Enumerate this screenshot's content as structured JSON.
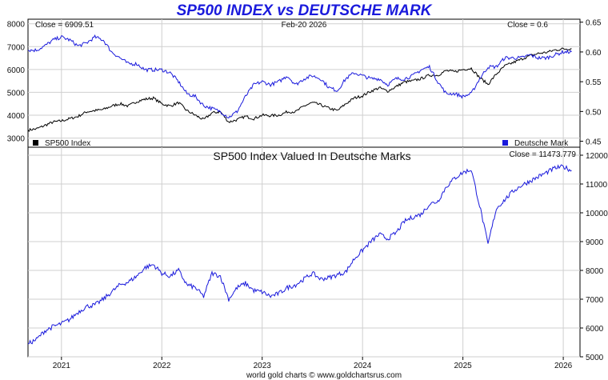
{
  "title": "SP500 INDEX vs DEUTSCHE MARK",
  "footer": "world gold charts © www.goldchartsrus.com",
  "colors": {
    "sp500": "#000000",
    "dem": "#1a1adc",
    "ratio": "#1a1adc",
    "title": "#1a1adc"
  },
  "chart_data": [
    {
      "type": "line",
      "title": "",
      "date_label": "Feb-20  2026",
      "close_left": "Close = 6909.51",
      "close_right": "Close = 0.6",
      "x_ticks": [
        "2021",
        "2022",
        "2023",
        "2024",
        "2025",
        "2026"
      ],
      "x_range": [
        "2020-09",
        "2026-03"
      ],
      "y_left_ticks": [
        "3000",
        "4000",
        "5000",
        "6000",
        "7000",
        "8000"
      ],
      "y_left_range": [
        2600,
        8200
      ],
      "y_right_ticks": [
        "0.45",
        "0.50",
        "0.55",
        "0.60",
        "0.65"
      ],
      "y_right_range": [
        0.44,
        0.655
      ],
      "legend": [
        "SP500 Index",
        "Deutsche Mark"
      ],
      "series": [
        {
          "name": "SP500 Index",
          "axis": "left",
          "x": [
            "2020-09",
            "2020-10",
            "2020-11",
            "2020-12",
            "2021-01",
            "2021-02",
            "2021-03",
            "2021-04",
            "2021-05",
            "2021-06",
            "2021-07",
            "2021-08",
            "2021-09",
            "2021-10",
            "2021-11",
            "2021-12",
            "2022-01",
            "2022-02",
            "2022-03",
            "2022-04",
            "2022-05",
            "2022-06",
            "2022-07",
            "2022-08",
            "2022-09",
            "2022-10",
            "2022-11",
            "2022-12",
            "2023-01",
            "2023-02",
            "2023-03",
            "2023-04",
            "2023-05",
            "2023-06",
            "2023-07",
            "2023-08",
            "2023-09",
            "2023-10",
            "2023-11",
            "2023-12",
            "2024-01",
            "2024-02",
            "2024-03",
            "2024-04",
            "2024-05",
            "2024-06",
            "2024-07",
            "2024-08",
            "2024-09",
            "2024-10",
            "2024-11",
            "2024-12",
            "2025-01",
            "2025-02",
            "2025-03",
            "2025-04",
            "2025-05",
            "2025-06",
            "2025-07",
            "2025-08",
            "2025-09",
            "2025-10",
            "2025-11",
            "2025-12",
            "2026-01",
            "2026-02"
          ],
          "values": [
            3350,
            3400,
            3550,
            3700,
            3750,
            3850,
            3950,
            4150,
            4200,
            4250,
            4400,
            4500,
            4400,
            4600,
            4700,
            4750,
            4500,
            4400,
            4550,
            4200,
            4000,
            3800,
            4100,
            4150,
            3700,
            3800,
            3950,
            3850,
            4000,
            3980,
            4000,
            4150,
            4150,
            4400,
            4550,
            4450,
            4300,
            4200,
            4500,
            4750,
            4850,
            5050,
            5200,
            5050,
            5250,
            5450,
            5500,
            5600,
            5750,
            5750,
            5950,
            5900,
            6000,
            6050,
            5650,
            5350,
            5800,
            6150,
            6300,
            6450,
            6600,
            6700,
            6750,
            6850,
            6900,
            6910
          ]
        },
        {
          "name": "Deutsche Mark",
          "axis": "right",
          "x": [
            "2020-09",
            "2020-10",
            "2020-11",
            "2020-12",
            "2021-01",
            "2021-02",
            "2021-03",
            "2021-04",
            "2021-05",
            "2021-06",
            "2021-07",
            "2021-08",
            "2021-09",
            "2021-10",
            "2021-11",
            "2021-12",
            "2022-01",
            "2022-02",
            "2022-03",
            "2022-04",
            "2022-05",
            "2022-06",
            "2022-07",
            "2022-08",
            "2022-09",
            "2022-10",
            "2022-11",
            "2022-12",
            "2023-01",
            "2023-02",
            "2023-03",
            "2023-04",
            "2023-05",
            "2023-06",
            "2023-07",
            "2023-08",
            "2023-09",
            "2023-10",
            "2023-11",
            "2023-12",
            "2024-01",
            "2024-02",
            "2024-03",
            "2024-04",
            "2024-05",
            "2024-06",
            "2024-07",
            "2024-08",
            "2024-09",
            "2024-10",
            "2024-11",
            "2024-12",
            "2025-01",
            "2025-02",
            "2025-03",
            "2025-04",
            "2025-05",
            "2025-06",
            "2025-07",
            "2025-08",
            "2025-09",
            "2025-10",
            "2025-11",
            "2025-12",
            "2026-01",
            "2026-02"
          ],
          "values": [
            0.603,
            0.603,
            0.61,
            0.62,
            0.625,
            0.62,
            0.61,
            0.615,
            0.625,
            0.62,
            0.6,
            0.59,
            0.58,
            0.58,
            0.57,
            0.57,
            0.57,
            0.565,
            0.55,
            0.53,
            0.525,
            0.51,
            0.505,
            0.5,
            0.49,
            0.5,
            0.525,
            0.545,
            0.55,
            0.545,
            0.55,
            0.56,
            0.545,
            0.555,
            0.56,
            0.555,
            0.54,
            0.535,
            0.555,
            0.565,
            0.56,
            0.555,
            0.555,
            0.545,
            0.555,
            0.555,
            0.56,
            0.57,
            0.575,
            0.55,
            0.53,
            0.53,
            0.525,
            0.53,
            0.555,
            0.575,
            0.575,
            0.59,
            0.59,
            0.59,
            0.595,
            0.59,
            0.59,
            0.595,
            0.6,
            0.6
          ]
        }
      ]
    },
    {
      "type": "line",
      "title": "SP500 Index Valued In Deutsche Marks",
      "close": "Close = 11473.779",
      "x_ticks": [
        "2021",
        "2022",
        "2023",
        "2024",
        "2025",
        "2026"
      ],
      "x_range": [
        "2020-09",
        "2026-03"
      ],
      "y_right_ticks": [
        "5000",
        "6000",
        "7000",
        "8000",
        "9000",
        "10000",
        "11000",
        "12000"
      ],
      "y_range": [
        5000,
        12000
      ],
      "series": [
        {
          "x": [
            "2020-09",
            "2020-10",
            "2020-11",
            "2020-12",
            "2021-01",
            "2021-02",
            "2021-03",
            "2021-04",
            "2021-05",
            "2021-06",
            "2021-07",
            "2021-08",
            "2021-09",
            "2021-10",
            "2021-11",
            "2021-12",
            "2022-01",
            "2022-02",
            "2022-03",
            "2022-04",
            "2022-05",
            "2022-06",
            "2022-07",
            "2022-08",
            "2022-09",
            "2022-10",
            "2022-11",
            "2022-12",
            "2023-01",
            "2023-02",
            "2023-03",
            "2023-04",
            "2023-05",
            "2023-06",
            "2023-07",
            "2023-08",
            "2023-09",
            "2023-10",
            "2023-11",
            "2023-12",
            "2024-01",
            "2024-02",
            "2024-03",
            "2024-04",
            "2024-05",
            "2024-06",
            "2024-07",
            "2024-08",
            "2024-09",
            "2024-10",
            "2024-11",
            "2024-12",
            "2025-01",
            "2025-02",
            "2025-03",
            "2025-04",
            "2025-05",
            "2025-06",
            "2025-07",
            "2025-08",
            "2025-09",
            "2025-10",
            "2025-11",
            "2025-12",
            "2026-01",
            "2026-02"
          ],
          "values": [
            5450,
            5600,
            5900,
            6050,
            6150,
            6300,
            6550,
            6750,
            6800,
            7000,
            7250,
            7500,
            7600,
            7800,
            8100,
            8200,
            7900,
            7800,
            8000,
            7500,
            7400,
            7100,
            7900,
            7800,
            7000,
            7400,
            7550,
            7300,
            7250,
            7100,
            7200,
            7400,
            7500,
            7700,
            7900,
            7700,
            7750,
            7850,
            7950,
            8400,
            8700,
            9000,
            9250,
            9100,
            9300,
            9700,
            9850,
            9950,
            10300,
            10400,
            10900,
            11200,
            11400,
            11500,
            10250,
            8900,
            10150,
            10450,
            10750,
            10950,
            11100,
            11250,
            11400,
            11550,
            11600,
            11474
          ]
        }
      ]
    }
  ]
}
